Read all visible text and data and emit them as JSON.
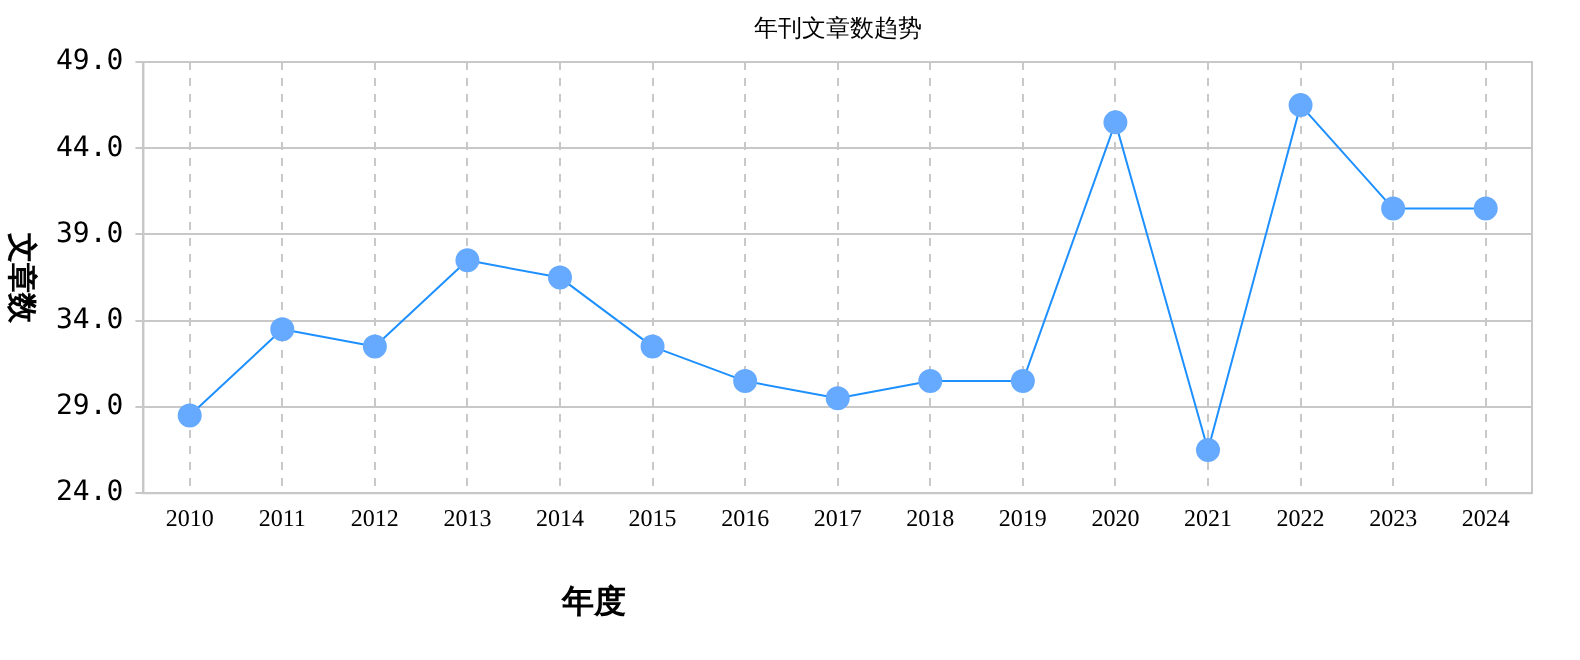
{
  "chart_data": {
    "type": "line",
    "title": "年刊文章数趋势",
    "xlabel": "年度",
    "ylabel": "文章数",
    "categories": [
      "2010",
      "2011",
      "2012",
      "2013",
      "2014",
      "2015",
      "2016",
      "2017",
      "2018",
      "2019",
      "2020",
      "2021",
      "2022",
      "2023",
      "2024"
    ],
    "series": [
      {
        "color": "#1e90ff",
        "values": [
          28.5,
          33.5,
          32.5,
          37.5,
          36.5,
          32.5,
          30.5,
          29.5,
          30.5,
          30.5,
          45.5,
          26.5,
          46.5,
          40.5,
          40.5
        ]
      }
    ],
    "ylim": [
      24,
      49
    ],
    "yticks": [
      {
        "value": 24,
        "label": "24.0"
      },
      {
        "value": 29,
        "label": "29.0"
      },
      {
        "value": 34,
        "label": "34.0"
      },
      {
        "value": 39,
        "label": "39.0"
      },
      {
        "value": 44,
        "label": "44.0"
      },
      {
        "value": 49,
        "label": "49.0"
      }
    ],
    "grid": true,
    "marker": "circle",
    "line_style": "solid",
    "legend": false
  }
}
